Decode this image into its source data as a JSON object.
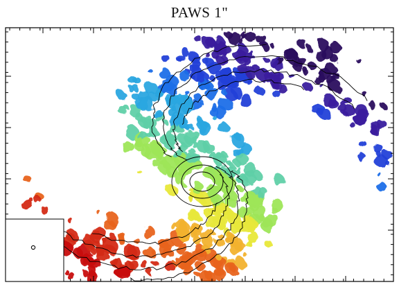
{
  "figure": {
    "title": "PAWS 1\"",
    "subject": "spiral-galaxy-velocity-field",
    "colormap": [
      "#2b0a5e",
      "#3a1f9e",
      "#2440d8",
      "#1f6fe8",
      "#2aa6e0",
      "#5fd0a8",
      "#9ee65a",
      "#e8e83a",
      "#f2b22e",
      "#e8641e",
      "#d42a14",
      "#c81010"
    ],
    "contour_color": "#000000",
    "frame_color": "#000000",
    "beam_marker": "circle"
  }
}
